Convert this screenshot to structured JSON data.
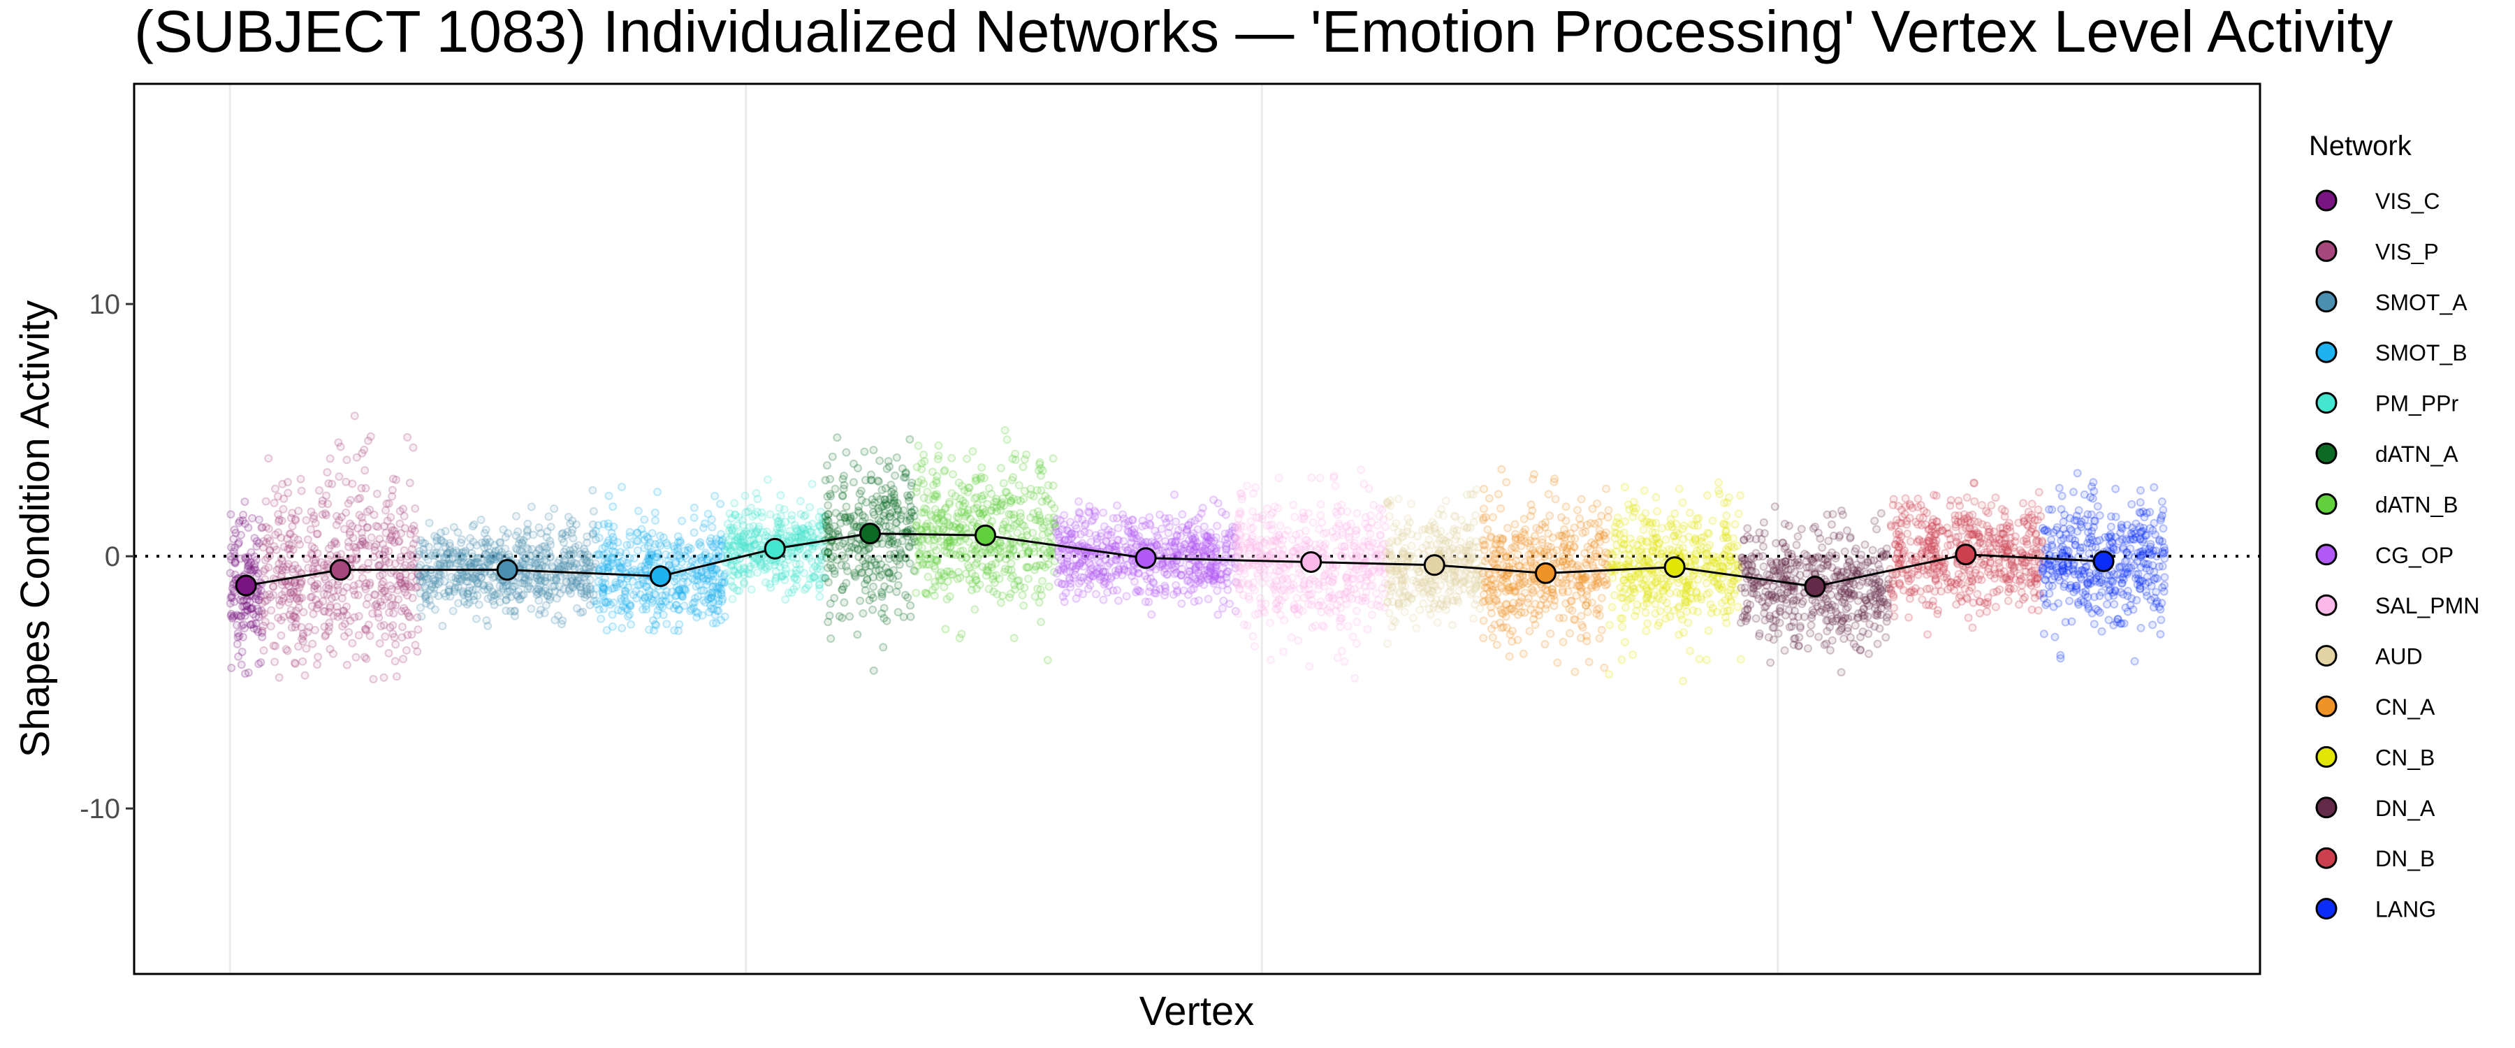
{
  "chart_data": {
    "type": "scatter",
    "title": "(SUBJECT 1083) Individualized Networks — 'Emotion Processing' Vertex Level Activity",
    "xlabel": "Vertex",
    "ylabel": "Shapes Condition Activity",
    "ylim": [
      -16.56,
      18.73
    ],
    "yticks": [
      10,
      0,
      -10
    ],
    "ytick_labels": [
      "10",
      "0",
      "-10"
    ],
    "xlim": [
      -2970,
      62950
    ],
    "x_gridlines": [
      0,
      16000,
      32000,
      48000
    ],
    "x_ticks_labeled": false,
    "reference_line": {
      "y": 0,
      "style": "dotted"
    },
    "grid": "vertical major only",
    "legend": {
      "title": "Network",
      "placement": "right"
    },
    "networks": [
      {
        "name": "VIS_C",
        "color": "#7a1483",
        "vertex_range": [
          0,
          1000
        ],
        "mean": -1.16,
        "sd": 1.4,
        "min": -5.3,
        "max": 2.2
      },
      {
        "name": "VIS_P",
        "color": "#a8467e",
        "vertex_range": [
          1000,
          5850
        ],
        "mean": -0.54,
        "sd": 2.0,
        "min": -5.0,
        "max": 6.8
      },
      {
        "name": "SMOT_A",
        "color": "#4a8fb0",
        "vertex_range": [
          5850,
          11350
        ],
        "mean": -0.54,
        "sd": 0.9,
        "min": -2.8,
        "max": 3.0
      },
      {
        "name": "SMOT_B",
        "color": "#1fb2f0",
        "vertex_range": [
          11350,
          15350
        ],
        "mean": -0.79,
        "sd": 1.1,
        "min": -3.2,
        "max": 5.0
      },
      {
        "name": "PM_PPr",
        "color": "#44e6cf",
        "vertex_range": [
          15350,
          18450
        ],
        "mean": 0.3,
        "sd": 0.9,
        "min": -1.8,
        "max": 3.3
      },
      {
        "name": "dATN_A",
        "color": "#0b6b24",
        "vertex_range": [
          18450,
          21250
        ],
        "mean": 0.9,
        "sd": 1.7,
        "min": -5.0,
        "max": 4.9
      },
      {
        "name": "dATN_B",
        "color": "#62cf3d",
        "vertex_range": [
          21250,
          25600
        ],
        "mean": 0.83,
        "sd": 1.6,
        "min": -4.6,
        "max": 5.0
      },
      {
        "name": "CG_OP",
        "color": "#b25af6",
        "vertex_range": [
          25600,
          31200
        ],
        "mean": -0.07,
        "sd": 0.9,
        "min": -2.6,
        "max": 4.0
      },
      {
        "name": "SAL_PMN",
        "color": "#fbb8e8",
        "vertex_range": [
          31200,
          35850
        ],
        "mean": -0.23,
        "sd": 1.4,
        "min": -5.0,
        "max": 3.5
      },
      {
        "name": "AUD",
        "color": "#e4d3a5",
        "vertex_range": [
          35850,
          38850
        ],
        "mean": -0.35,
        "sd": 1.2,
        "min": -4.0,
        "max": 3.6
      },
      {
        "name": "CN_A",
        "color": "#f09327",
        "vertex_range": [
          38850,
          42750
        ],
        "mean": -0.67,
        "sd": 1.4,
        "min": -5.0,
        "max": 3.6
      },
      {
        "name": "CN_B",
        "color": "#e2e605",
        "vertex_range": [
          42750,
          46850
        ],
        "mean": -0.43,
        "sd": 1.3,
        "min": -5.2,
        "max": 3.0
      },
      {
        "name": "DN_A",
        "color": "#632b48",
        "vertex_range": [
          46850,
          51450
        ],
        "mean": -1.2,
        "sd": 1.2,
        "min": -5.2,
        "max": 2.2
      },
      {
        "name": "DN_B",
        "color": "#cc3f4e",
        "vertex_range": [
          51450,
          56200
        ],
        "mean": 0.07,
        "sd": 1.1,
        "min": -3.2,
        "max": 3.3
      },
      {
        "name": "LANG",
        "color": "#0c2df8",
        "vertex_range": [
          56200,
          60000
        ],
        "mean": -0.2,
        "sd": 1.3,
        "min": -4.6,
        "max": 3.5
      }
    ]
  }
}
